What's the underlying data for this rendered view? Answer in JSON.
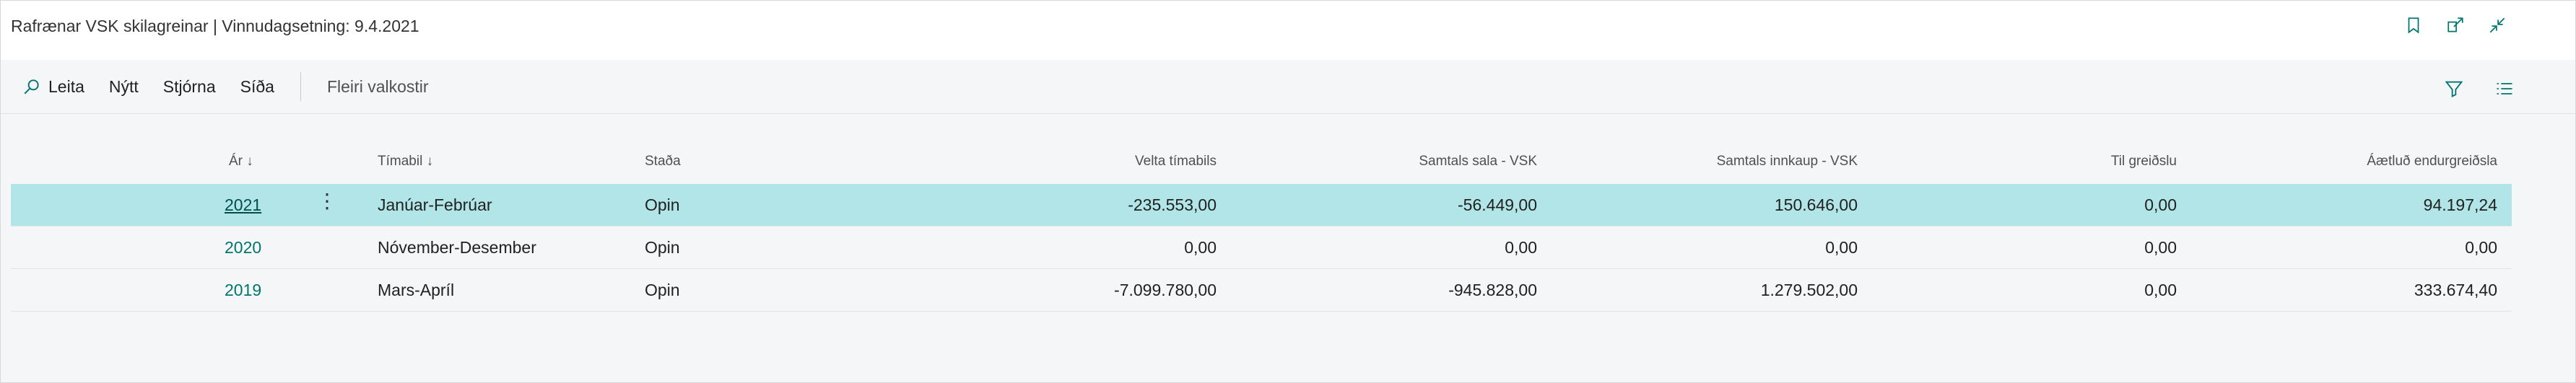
{
  "window": {
    "title": "Rafrænar VSK skilagreinar | Vinnudagsetning: 9.4.2021"
  },
  "title_icons": [
    "bookmark-icon",
    "open-new-window-icon",
    "collapse-icon"
  ],
  "actions": {
    "search": "Leita",
    "new": "Nýtt",
    "manage": "Stjórna",
    "page": "Síða",
    "more": "Fleiri valkostir"
  },
  "toolbar_right_icons": [
    "filter-icon",
    "list-view-icon"
  ],
  "table": {
    "columns": {
      "year": "Ár",
      "period": "Tímabil",
      "status": "Staða",
      "turnover": "Velta tímabils",
      "total_sales_vat": "Samtals sala - VSK",
      "total_purchase_vat": "Samtals innkaup - VSK",
      "to_pay": "Til greiðslu",
      "est_refund": "Áætluð endurgreiðsla"
    },
    "rows": [
      {
        "year": "2021",
        "period": "Janúar-Febrúar",
        "status": "Opin",
        "turnover": "-235.553,00",
        "total_sales_vat": "-56.449,00",
        "total_purchase_vat": "150.646,00",
        "to_pay": "0,00",
        "est_refund": "94.197,24",
        "selected": true
      },
      {
        "year": "2020",
        "period": "Nóvember-Desember",
        "status": "Opin",
        "turnover": "0,00",
        "total_sales_vat": "0,00",
        "total_purchase_vat": "0,00",
        "to_pay": "0,00",
        "est_refund": "0,00",
        "selected": false
      },
      {
        "year": "2019",
        "period": "Mars-Apríl",
        "status": "Opin",
        "turnover": "-7.099.780,00",
        "total_sales_vat": "-945.828,00",
        "total_purchase_vat": "1.279.502,00",
        "to_pay": "0,00",
        "est_refund": "333.674,40",
        "selected": false
      }
    ]
  },
  "colors": {
    "accent": "#00766f",
    "selected_row": "#b1e5e8",
    "background": "#f5f6f7"
  }
}
